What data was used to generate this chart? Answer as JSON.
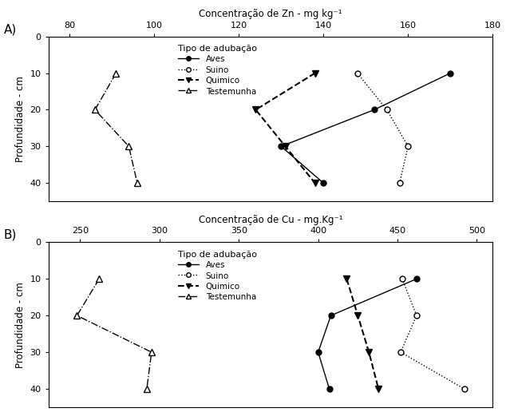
{
  "panel_A": {
    "title": "Concentração de Zn - mg kg⁻¹",
    "ylabel": "Profundidade - cm",
    "xlim": [
      75,
      180
    ],
    "xticks": [
      80,
      100,
      120,
      140,
      160,
      180
    ],
    "ylim": [
      45,
      0
    ],
    "yticks": [
      0,
      10,
      20,
      30,
      40
    ],
    "depths": [
      10,
      20,
      30,
      40
    ],
    "aves": [
      170,
      152,
      130,
      140
    ],
    "suino": [
      148,
      155,
      160,
      158
    ],
    "quimico": [
      138,
      124,
      131,
      138
    ],
    "testemunha": [
      91,
      86,
      94,
      96
    ]
  },
  "panel_B": {
    "title": "Concentração de Cu - mg.Kg⁻¹",
    "ylabel": "Profundidade - cm",
    "xlim": [
      230,
      510
    ],
    "xticks": [
      250,
      300,
      350,
      400,
      450,
      500
    ],
    "ylim": [
      45,
      0
    ],
    "yticks": [
      0,
      10,
      20,
      30,
      40
    ],
    "depths": [
      10,
      20,
      30,
      40
    ],
    "aves": [
      462,
      408,
      400,
      407
    ],
    "suino": [
      453,
      462,
      452,
      492
    ],
    "quimico": [
      418,
      425,
      432,
      438
    ],
    "testemunha": [
      262,
      248,
      295,
      292
    ]
  },
  "legend_title": "Tipo de adubação",
  "legend_labels": [
    "Aves",
    "Suino",
    "Quimico",
    "Testemunha"
  ]
}
